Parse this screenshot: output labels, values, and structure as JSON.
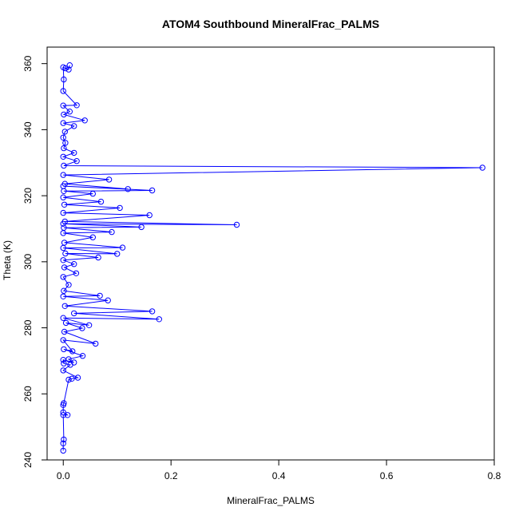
{
  "chart_data": {
    "type": "line",
    "title": "ATOM4 Southbound MineralFrac_PALMS",
    "xlabel": "MineralFrac_PALMS",
    "ylabel": "Theta (K)",
    "xlim": [
      -0.03,
      0.8
    ],
    "ylim": [
      240,
      365
    ],
    "x_ticks": [
      0.0,
      0.2,
      0.4,
      0.6,
      0.8
    ],
    "x_tick_labels": [
      "0.0",
      "0.2",
      "0.4",
      "0.6",
      "0.8"
    ],
    "y_ticks": [
      240,
      260,
      280,
      300,
      320,
      340,
      360
    ],
    "y_tick_labels": [
      "240",
      "260",
      "280",
      "300",
      "320",
      "340",
      "360"
    ],
    "grid": false,
    "marker": "open-circle",
    "series": [
      {
        "color": "#0000ff",
        "points": [
          [
            0.0,
            242.8
          ],
          [
            0.0,
            245.0
          ],
          [
            0.001,
            246.2
          ],
          [
            0.0,
            253.6
          ],
          [
            0.008,
            253.6
          ],
          [
            0.0,
            254.4
          ],
          [
            0.0,
            256.6
          ],
          [
            0.001,
            257.2
          ],
          [
            0.01,
            264.3
          ],
          [
            0.016,
            264.6
          ],
          [
            0.027,
            264.9
          ],
          [
            0.0,
            267.1
          ],
          [
            0.013,
            268.8
          ],
          [
            0.001,
            269.2
          ],
          [
            0.0,
            270.3
          ],
          [
            0.02,
            269.5
          ],
          [
            0.01,
            270.5
          ],
          [
            0.036,
            271.5
          ],
          [
            0.001,
            273.5
          ],
          [
            0.017,
            272.9
          ],
          [
            0.0,
            276.3
          ],
          [
            0.06,
            275.2
          ],
          [
            0.002,
            278.8
          ],
          [
            0.035,
            279.9
          ],
          [
            0.005,
            281.5
          ],
          [
            0.048,
            280.8
          ],
          [
            0.0,
            283.0
          ],
          [
            0.178,
            282.6
          ],
          [
            0.02,
            284.4
          ],
          [
            0.165,
            285.0
          ],
          [
            0.003,
            286.6
          ],
          [
            0.083,
            288.3
          ],
          [
            0.0,
            289.5
          ],
          [
            0.068,
            289.7
          ],
          [
            0.001,
            291.2
          ],
          [
            0.01,
            293.0
          ],
          [
            0.0,
            295.4
          ],
          [
            0.024,
            296.5
          ],
          [
            0.002,
            298.3
          ],
          [
            0.02,
            299.3
          ],
          [
            0.0,
            300.5
          ],
          [
            0.065,
            301.3
          ],
          [
            0.004,
            302.5
          ],
          [
            0.1,
            302.4
          ],
          [
            0.0,
            304.2
          ],
          [
            0.11,
            304.3
          ],
          [
            0.002,
            305.8
          ],
          [
            0.055,
            307.4
          ],
          [
            0.0,
            308.7
          ],
          [
            0.09,
            309.0
          ],
          [
            0.001,
            310.3
          ],
          [
            0.145,
            310.5
          ],
          [
            0.0,
            311.5
          ],
          [
            0.322,
            311.2
          ],
          [
            0.003,
            312.2
          ],
          [
            0.16,
            314.1
          ],
          [
            0.0,
            314.8
          ],
          [
            0.105,
            316.3
          ],
          [
            0.002,
            317.3
          ],
          [
            0.07,
            318.2
          ],
          [
            0.0,
            319.5
          ],
          [
            0.055,
            320.6
          ],
          [
            0.001,
            321.4
          ],
          [
            0.165,
            321.6
          ],
          [
            0.0,
            322.9
          ],
          [
            0.12,
            322.0
          ],
          [
            0.003,
            323.6
          ],
          [
            0.085,
            324.9
          ],
          [
            0.0,
            326.3
          ],
          [
            0.778,
            328.5
          ],
          [
            0.001,
            329.1
          ],
          [
            0.025,
            330.5
          ],
          [
            0.0,
            331.8
          ],
          [
            0.02,
            333.0
          ],
          [
            0.001,
            334.4
          ],
          [
            0.004,
            336.0
          ],
          [
            0.0,
            337.6
          ],
          [
            0.003,
            339.4
          ],
          [
            0.02,
            341.1
          ],
          [
            0.0,
            342.0
          ],
          [
            0.04,
            342.8
          ],
          [
            0.001,
            344.6
          ],
          [
            0.012,
            345.5
          ],
          [
            0.0,
            347.3
          ],
          [
            0.025,
            347.4
          ],
          [
            0.0,
            351.7
          ],
          [
            0.001,
            355.2
          ],
          [
            0.0,
            358.9
          ],
          [
            0.004,
            358.6
          ],
          [
            0.01,
            358.2
          ],
          [
            0.012,
            359.5
          ]
        ]
      }
    ]
  }
}
